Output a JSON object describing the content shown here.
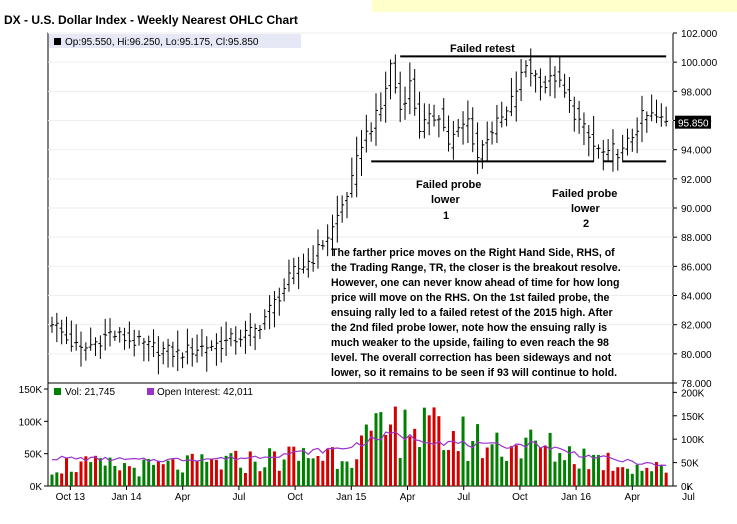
{
  "chart_data": {
    "type": "ohlc",
    "title": "DX - U.S. Dollar Index - Weekly Nearest OHLC Chart",
    "ohlc_legend": "Op:95.550, Hi:96.250, Lo:95.175, Cl:95.850",
    "last_price_label": "95.850",
    "price_axis": {
      "ylim": [
        78,
        102
      ],
      "ticks": [
        "102.000",
        "100.000",
        "98.000",
        "96.000",
        "94.000",
        "92.000",
        "90.000",
        "88.000",
        "86.000",
        "84.000",
        "82.000",
        "80.000",
        "78.000"
      ]
    },
    "x_tick_labels": [
      "Oct 13",
      "Jan 14",
      "Apr",
      "Jul",
      "Oct",
      "Jan 15",
      "Apr",
      "Jul",
      "Oct",
      "Jan 16",
      "Apr",
      "Jul"
    ],
    "price_series_anchors": [
      {
        "week": 0,
        "price": 82.3
      },
      {
        "week": 3,
        "price": 81.0
      },
      {
        "week": 6,
        "price": 80.2
      },
      {
        "week": 12,
        "price": 81.4
      },
      {
        "week": 20,
        "price": 80.5
      },
      {
        "week": 26,
        "price": 80.0
      },
      {
        "week": 30,
        "price": 80.4
      },
      {
        "week": 36,
        "price": 80.8
      },
      {
        "week": 42,
        "price": 81.6
      },
      {
        "week": 46,
        "price": 83.5
      },
      {
        "week": 50,
        "price": 85.6
      },
      {
        "week": 54,
        "price": 86.6
      },
      {
        "week": 58,
        "price": 88.6
      },
      {
        "week": 62,
        "price": 91.8
      },
      {
        "week": 64,
        "price": 94.5
      },
      {
        "week": 68,
        "price": 96.8
      },
      {
        "week": 70,
        "price": 99.8
      },
      {
        "week": 72,
        "price": 96.8
      },
      {
        "week": 74,
        "price": 98.5
      },
      {
        "week": 76,
        "price": 95.5
      },
      {
        "week": 80,
        "price": 96.5
      },
      {
        "week": 82,
        "price": 94.5
      },
      {
        "week": 86,
        "price": 96.0
      },
      {
        "week": 88,
        "price": 93.5
      },
      {
        "week": 90,
        "price": 95.0
      },
      {
        "week": 94,
        "price": 96.5
      },
      {
        "week": 98,
        "price": 99.8
      },
      {
        "week": 102,
        "price": 98.4
      },
      {
        "week": 104,
        "price": 99.0
      },
      {
        "week": 108,
        "price": 96.5
      },
      {
        "week": 112,
        "price": 94.2
      },
      {
        "week": 115,
        "price": 93.5
      },
      {
        "week": 116,
        "price": 94.0
      },
      {
        "week": 118,
        "price": 93.8
      },
      {
        "week": 122,
        "price": 96.2
      },
      {
        "week": 124,
        "price": 96.3
      },
      {
        "week": 127,
        "price": 95.85
      }
    ],
    "volume_axis": {
      "ylim": [
        0,
        150000
      ],
      "ticks_left": [
        "150K",
        "100K",
        "50K",
        "0K"
      ]
    },
    "open_interest_axis": {
      "ylim": [
        0,
        220000
      ],
      "ticks_right": [
        "200K",
        "150K",
        "100K",
        "50K",
        "0K"
      ]
    },
    "volume_legend": "Vol: 21,745",
    "open_interest_legend": "Open Interest: 42,011",
    "volume_anchors": [
      {
        "week": 0,
        "volume": 35000
      },
      {
        "week": 20,
        "volume": 30000
      },
      {
        "week": 40,
        "volume": 40000
      },
      {
        "week": 60,
        "volume": 55000
      },
      {
        "week": 72,
        "volume": 95000
      },
      {
        "week": 90,
        "volume": 70000
      },
      {
        "week": 100,
        "volume": 65000
      },
      {
        "week": 112,
        "volume": 45000
      },
      {
        "week": 127,
        "volume": 25000
      }
    ],
    "open_interest_anchors": [
      {
        "week": 0,
        "oi": 60000
      },
      {
        "week": 20,
        "oi": 55000
      },
      {
        "week": 40,
        "oi": 60000
      },
      {
        "week": 60,
        "oi": 80000
      },
      {
        "week": 70,
        "oi": 110000
      },
      {
        "week": 80,
        "oi": 95000
      },
      {
        "week": 90,
        "oi": 85000
      },
      {
        "week": 100,
        "oi": 90000
      },
      {
        "week": 110,
        "oi": 65000
      },
      {
        "week": 127,
        "oi": 42011
      }
    ],
    "trading_range_lines": [
      {
        "name": "failed-retest-line",
        "week_start": 72,
        "week_end": 127,
        "price": 100.4
      },
      {
        "name": "support-line-1",
        "week_start": 66,
        "week_end": 112,
        "price": 93.2
      },
      {
        "name": "support-line-2",
        "week_start": 114,
        "week_end": 116,
        "price": 93.2
      },
      {
        "name": "support-line-3",
        "week_start": 118,
        "week_end": 127,
        "price": 93.2
      }
    ],
    "annotations": [
      {
        "name": "failed-retest",
        "text": "Failed retest"
      },
      {
        "name": "failed-probe-1",
        "text": [
          "Failed probe",
          "lower",
          "1"
        ]
      },
      {
        "name": "failed-probe-2",
        "text": [
          "Failed probe",
          "lower",
          "2"
        ]
      }
    ],
    "commentary": [
      "The farther price moves on the Right Hand Side, RHS, of",
      "the Trading Range, TR, the closer is the breakout resolve.",
      "However, one can never know ahead of time for how long",
      "price will move on the RHS.  On the 1st failed probe, the",
      "ensuing rally led to a failed retest of the 2015 high.  After",
      "the 2nd filed probe lower, note how the ensuing rally is",
      "much weaker to the upside, failing to even reach the 98",
      "level. The overall correction has been sideways and not",
      "lower, so it remains to be seen if 93 will continue to hold."
    ],
    "colors": {
      "price_bar": "#000000",
      "volume_up": "#008000",
      "volume_down": "#d40000",
      "open_interest": "#9933cc",
      "last_price_bg": "#000000",
      "last_price_fg": "#ffffff",
      "header_strip": "#ffffcc",
      "legend_bg": "#e6e8f5"
    }
  }
}
